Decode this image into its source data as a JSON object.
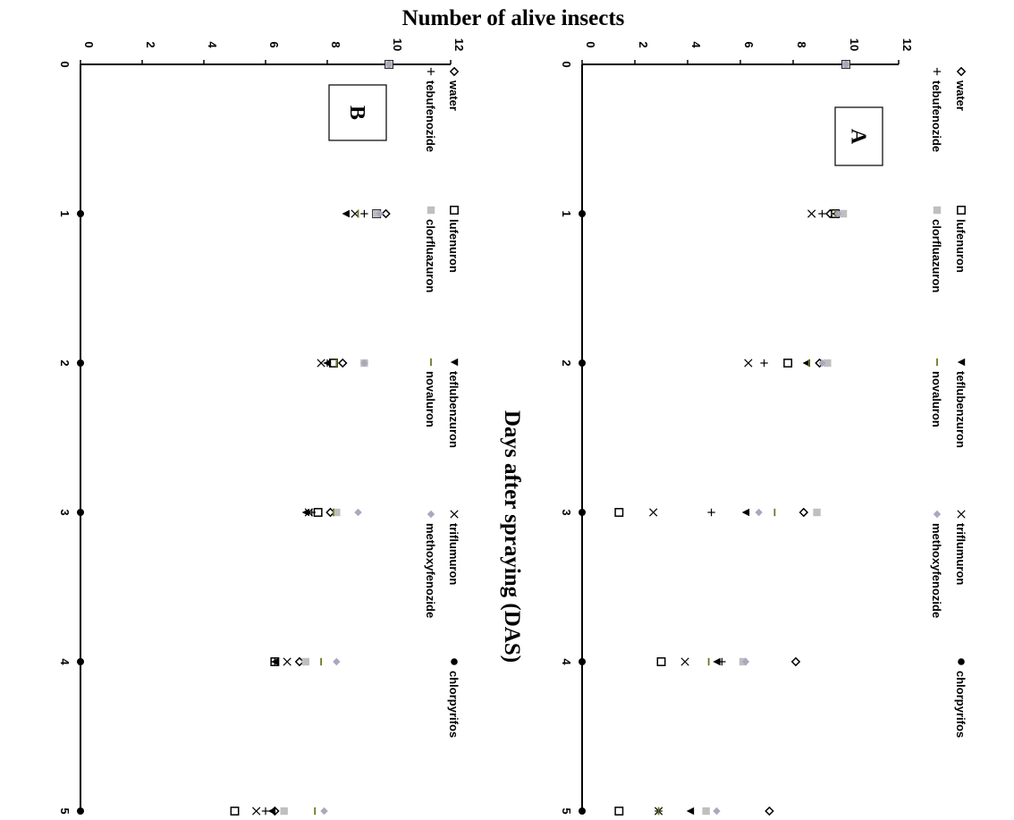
{
  "chart_data": {
    "type": "scatter",
    "orientation": "rotated-90-clockwise",
    "y_title": "Number of alive insects",
    "x_title": "Days after spraying (DAS)",
    "x_ticks": [
      "0",
      "1",
      "2",
      "3",
      "4",
      "5"
    ],
    "y_ticks": [
      "0",
      "2",
      "4",
      "6",
      "8",
      "10",
      "12"
    ],
    "xlim": [
      0,
      5
    ],
    "ylim": [
      0,
      12
    ],
    "grid": false,
    "legend": {
      "placement": "top",
      "entries": [
        {
          "symbol": "◇",
          "label": "water"
        },
        {
          "symbol": "□",
          "label": "lufenuron"
        },
        {
          "symbol": "▲",
          "label": "teflubenzuron"
        },
        {
          "symbol": "×",
          "label": "triflumuron"
        },
        {
          "symbol": "●",
          "label": "chlorpyrifos"
        },
        {
          "symbol": "+",
          "label": "tebufenozide"
        },
        {
          "symbol": "■",
          "label": "clorfluazuron"
        },
        {
          "symbol": "–",
          "label": "novaluron"
        },
        {
          "symbol": "◆",
          "label": "methoxyfenozide"
        }
      ]
    },
    "panels": [
      {
        "label": "A",
        "x": [
          0,
          1,
          2,
          3,
          4,
          5
        ],
        "series": [
          {
            "name": "water",
            "marker": "diamond-open",
            "color": "#000000",
            "values": [
              10,
              9.4,
              9.0,
              8.4,
              8.1,
              7.1
            ]
          },
          {
            "name": "lufenuron",
            "marker": "square-open",
            "color": "#000000",
            "values": [
              10,
              9.6,
              7.8,
              1.4,
              3.0,
              1.4
            ]
          },
          {
            "name": "teflubenzuron",
            "marker": "triangle",
            "color": "#000000",
            "values": [
              10,
              9.6,
              8.5,
              6.2,
              5.1,
              4.1
            ]
          },
          {
            "name": "triflumuron",
            "marker": "cross-x",
            "color": "#000000",
            "values": [
              10,
              8.7,
              6.3,
              2.7,
              3.9,
              2.9
            ]
          },
          {
            "name": "chlorpyrifos",
            "marker": "circle",
            "color": "#000000",
            "values": [
              null,
              null,
              null,
              null,
              null,
              null
            ]
          },
          {
            "name": "tebufenozide",
            "marker": "plus",
            "color": "#000000",
            "values": [
              10,
              9.1,
              6.9,
              4.9,
              5.3,
              2.9
            ]
          },
          {
            "name": "clorfluazuron",
            "marker": "square-filled",
            "color": "#bfbfbf",
            "values": [
              10,
              9.9,
              9.3,
              8.9,
              6.1,
              4.7
            ]
          },
          {
            "name": "novaluron",
            "marker": "dash",
            "color": "#6b7a22",
            "values": [
              10,
              9.6,
              8.6,
              7.3,
              4.8,
              2.9
            ]
          },
          {
            "name": "methoxyfenozide",
            "marker": "diamond-filled",
            "color": "#a8a8bf",
            "values": [
              10,
              9.7,
              9.1,
              6.7,
              6.2,
              5.1
            ]
          }
        ]
      },
      {
        "label": "B",
        "x": [
          0,
          1,
          2,
          3,
          4,
          5
        ],
        "series": [
          {
            "name": "water",
            "marker": "diamond-open",
            "color": "#000000",
            "values": [
              10,
              9.9,
              8.5,
              8.1,
              7.1,
              6.3
            ]
          },
          {
            "name": "lufenuron",
            "marker": "square-open",
            "color": "#000000",
            "values": [
              10,
              9.6,
              8.2,
              7.7,
              6.3,
              5.0
            ]
          },
          {
            "name": "teflubenzuron",
            "marker": "triangle",
            "color": "#000000",
            "values": [
              10,
              8.6,
              8.0,
              7.3,
              6.3,
              6.2
            ]
          },
          {
            "name": "triflumuron",
            "marker": "cross-x",
            "color": "#000000",
            "values": [
              10,
              8.9,
              7.8,
              7.4,
              6.7,
              5.7
            ]
          },
          {
            "name": "chlorpyrifos",
            "marker": "circle",
            "color": "#000000",
            "values": [
              null,
              null,
              null,
              null,
              null,
              null
            ]
          },
          {
            "name": "tebufenozide",
            "marker": "plus",
            "color": "#000000",
            "values": [
              10,
              9.2,
              8.0,
              7.5,
              6.3,
              6.0
            ]
          },
          {
            "name": "clorfluazuron",
            "marker": "square-filled",
            "color": "#bfbfbf",
            "values": [
              10,
              9.6,
              9.2,
              8.3,
              7.3,
              6.6
            ]
          },
          {
            "name": "novaluron",
            "marker": "dash",
            "color": "#6b7a22",
            "values": [
              10,
              9.0,
              8.3,
              8.2,
              7.8,
              7.6
            ]
          },
          {
            "name": "methoxyfenozide",
            "marker": "diamond-filled",
            "color": "#a8a8bf",
            "values": [
              10,
              9.7,
              9.2,
              9.0,
              8.3,
              7.9
            ]
          }
        ]
      }
    ]
  }
}
